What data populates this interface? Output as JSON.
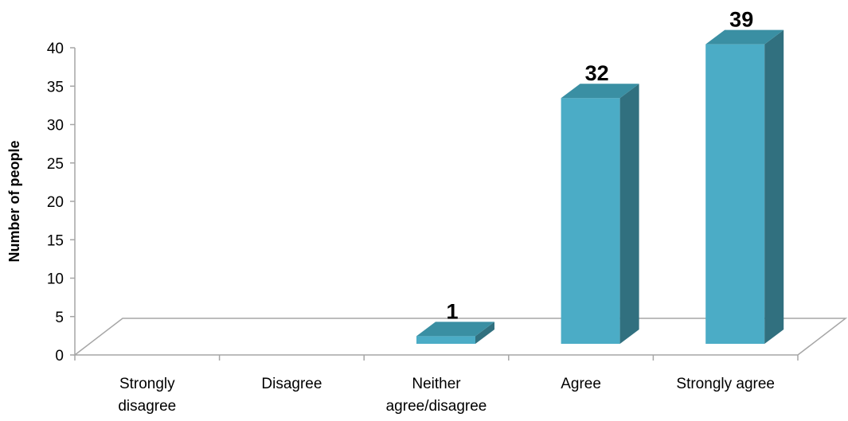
{
  "chart_data": {
    "type": "bar",
    "title": "",
    "xlabel": "",
    "ylabel": "Number of people",
    "ylim": [
      0,
      40
    ],
    "yticks": [
      0,
      5,
      10,
      15,
      20,
      25,
      30,
      35,
      40
    ],
    "categories": [
      [
        "Strongly",
        "disagree"
      ],
      [
        "Disagree"
      ],
      [
        "Neither",
        "agree/disagree"
      ],
      [
        "Agree"
      ],
      [
        "Strongly agree"
      ]
    ],
    "values": [
      0,
      0,
      1,
      32,
      39
    ],
    "data_labels": [
      "",
      "",
      "1",
      "32",
      "39"
    ],
    "grid": false,
    "legend": "none",
    "colors": {
      "front": "#4BACC6",
      "side": "#31707F",
      "top": "#3A8FA3",
      "axis": "#A6A6A6"
    }
  }
}
